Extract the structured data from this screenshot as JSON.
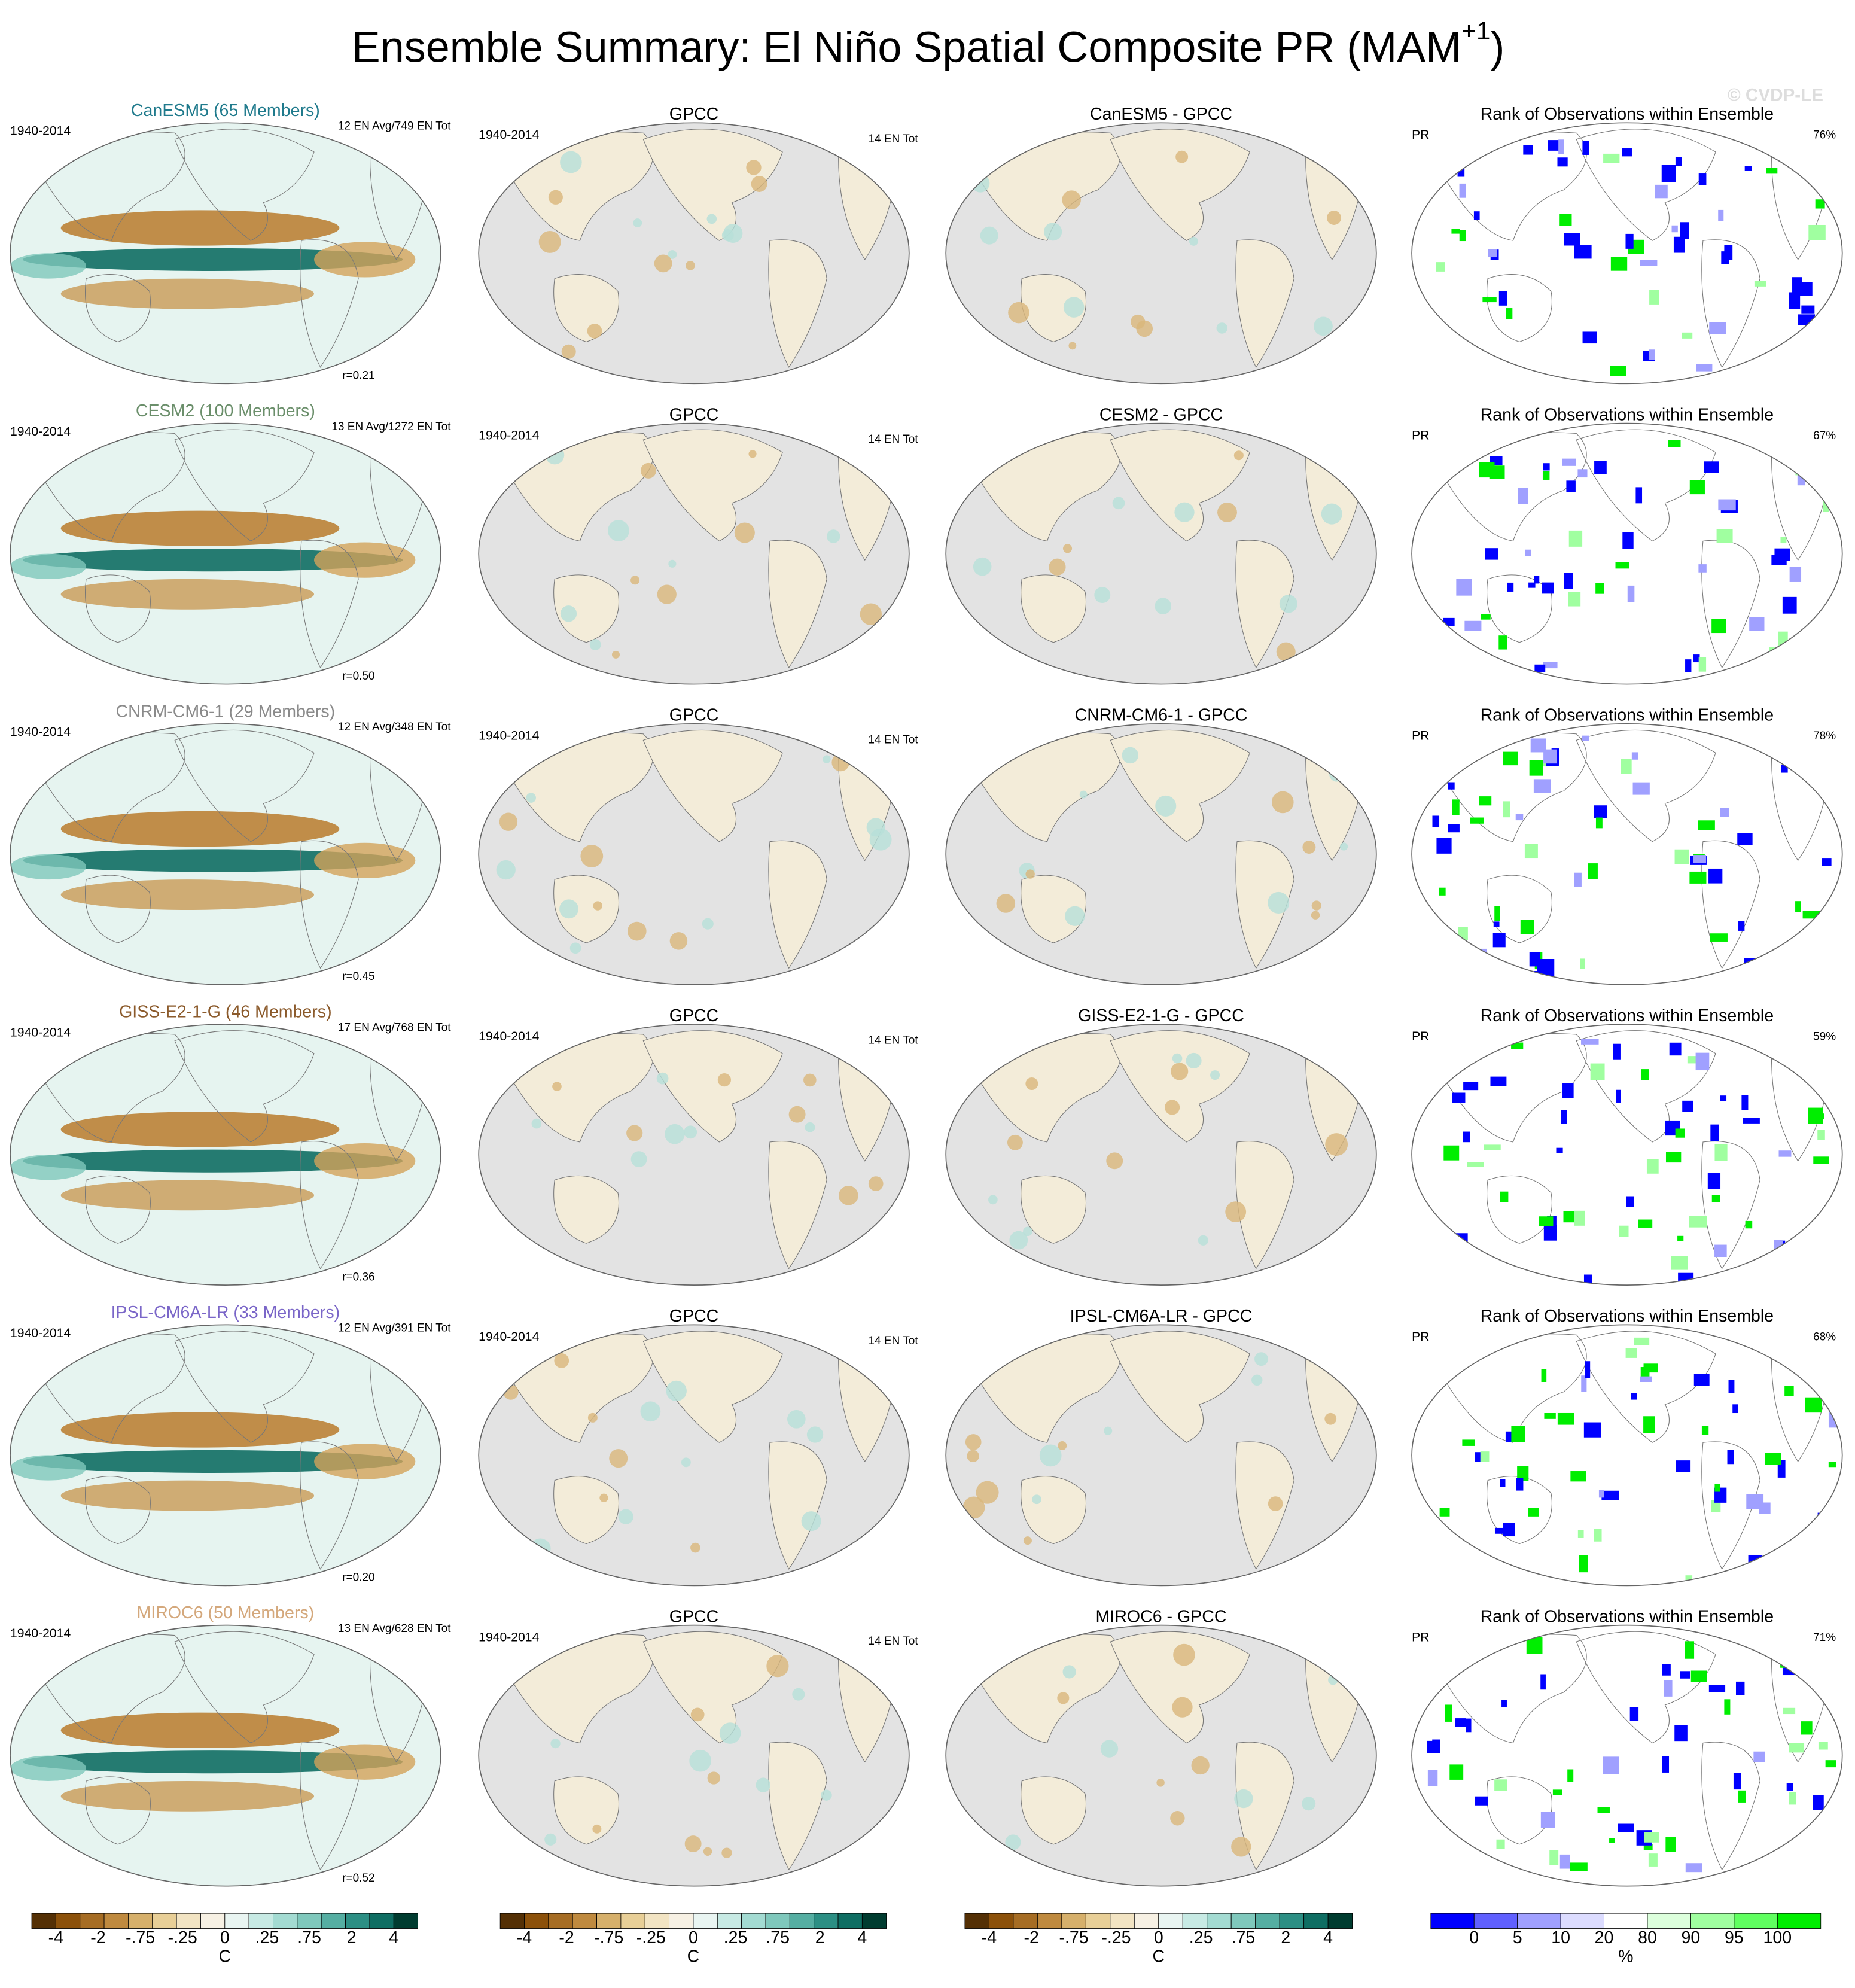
{
  "title": {
    "main": "Ensemble Summary: El Niño Spatial Composite PR (MAM",
    "sup": "+1",
    "end": ")"
  },
  "watermark": "© CVDP-LE",
  "rows": [
    {
      "model": {
        "label": "CanESM5 (65 Members)",
        "color": "#1f7a8c"
      },
      "period": "1940-2014",
      "count": "12 EN Avg/749 EN Tot",
      "r": "r=0.21",
      "obs": {
        "title": "GPCC",
        "period": "1940-2014",
        "count": "14 EN Tot"
      },
      "diff_title": "CanESM5 - GPCC",
      "rank": {
        "title": "Rank of Observations within Ensemble",
        "var": "PR",
        "pct": "76%"
      }
    },
    {
      "model": {
        "label": "CESM2 (100 Members)",
        "color": "#6b8f6b"
      },
      "period": "1940-2014",
      "count": "13 EN Avg/1272 EN Tot",
      "r": "r=0.50",
      "obs": {
        "title": "GPCC",
        "period": "1940-2014",
        "count": "14 EN Tot"
      },
      "diff_title": "CESM2 - GPCC",
      "rank": {
        "title": "Rank of Observations within Ensemble",
        "var": "PR",
        "pct": "67%"
      }
    },
    {
      "model": {
        "label": "CNRM-CM6-1 (29 Members)",
        "color": "#8a8a8a"
      },
      "period": "1940-2014",
      "count": "12 EN Avg/348 EN Tot",
      "r": "r=0.45",
      "obs": {
        "title": "GPCC",
        "period": "1940-2014",
        "count": "14 EN Tot"
      },
      "diff_title": "CNRM-CM6-1 - GPCC",
      "rank": {
        "title": "Rank of Observations within Ensemble",
        "var": "PR",
        "pct": "78%"
      }
    },
    {
      "model": {
        "label": "GISS-E2-1-G (46 Members)",
        "color": "#8b5a2b"
      },
      "period": "1940-2014",
      "count": "17 EN Avg/768 EN Tot",
      "r": "r=0.36",
      "obs": {
        "title": "GPCC",
        "period": "1940-2014",
        "count": "14 EN Tot"
      },
      "diff_title": "GISS-E2-1-G - GPCC",
      "rank": {
        "title": "Rank of Observations within Ensemble",
        "var": "PR",
        "pct": "59%"
      }
    },
    {
      "model": {
        "label": "IPSL-CM6A-LR (33 Members)",
        "color": "#7a66c8"
      },
      "period": "1940-2014",
      "count": "12 EN Avg/391 EN Tot",
      "r": "r=0.20",
      "obs": {
        "title": "GPCC",
        "period": "1940-2014",
        "count": "14 EN Tot"
      },
      "diff_title": "IPSL-CM6A-LR - GPCC",
      "rank": {
        "title": "Rank of Observations within Ensemble",
        "var": "PR",
        "pct": "68%"
      }
    },
    {
      "model": {
        "label": "MIROC6 (50 Members)",
        "color": "#d4a87c"
      },
      "period": "1940-2014",
      "count": "13 EN Avg/628 EN Tot",
      "r": "r=0.52",
      "obs": {
        "title": "GPCC",
        "period": "1940-2014",
        "count": "14 EN Tot"
      },
      "diff_title": "MIROC6 - GPCC",
      "rank": {
        "title": "Rank of Observations within Ensemble",
        "var": "PR",
        "pct": "71%"
      }
    }
  ],
  "colorbars": [
    {
      "colors": [
        "#543005",
        "#8c510a",
        "#a66d24",
        "#bf8a3f",
        "#d6b06b",
        "#e8cf97",
        "#f2e4c3",
        "#f7f1e4",
        "#e9f5f2",
        "#c7eae4",
        "#a3dbd2",
        "#7fc8bc",
        "#55aea2",
        "#2c8f84",
        "#0f6e63",
        "#003c30"
      ],
      "labels": [
        "-4",
        "-2",
        "-.75",
        "-.25",
        "0",
        ".25",
        ".75",
        "2",
        "4"
      ],
      "unit": "C"
    },
    {
      "colors": [
        "#543005",
        "#8c510a",
        "#a66d24",
        "#bf8a3f",
        "#d6b06b",
        "#e8cf97",
        "#f2e4c3",
        "#f7f1e4",
        "#e9f5f2",
        "#c7eae4",
        "#a3dbd2",
        "#7fc8bc",
        "#55aea2",
        "#2c8f84",
        "#0f6e63",
        "#003c30"
      ],
      "labels": [
        "-4",
        "-2",
        "-.75",
        "-.25",
        "0",
        ".25",
        ".75",
        "2",
        "4"
      ],
      "unit": "C"
    },
    {
      "colors": [
        "#543005",
        "#8c510a",
        "#a66d24",
        "#bf8a3f",
        "#d6b06b",
        "#e8cf97",
        "#f2e4c3",
        "#f7f1e4",
        "#e9f5f2",
        "#c7eae4",
        "#a3dbd2",
        "#7fc8bc",
        "#55aea2",
        "#2c8f84",
        "#0f6e63",
        "#003c30"
      ],
      "labels": [
        "-4",
        "-2",
        "-.75",
        "-.25",
        "0",
        ".25",
        ".75",
        "2",
        "4"
      ],
      "unit": "C"
    },
    {
      "colors": [
        "#0000ff",
        "#6060ff",
        "#a0a0ff",
        "#dcdcff",
        "#ffffff",
        "#dcffdc",
        "#a0ffa0",
        "#60ff60",
        "#00ee00"
      ],
      "labels": [
        "0",
        "5",
        "10",
        "20",
        "80",
        "90",
        "95",
        "100"
      ],
      "unit": "%"
    }
  ]
}
